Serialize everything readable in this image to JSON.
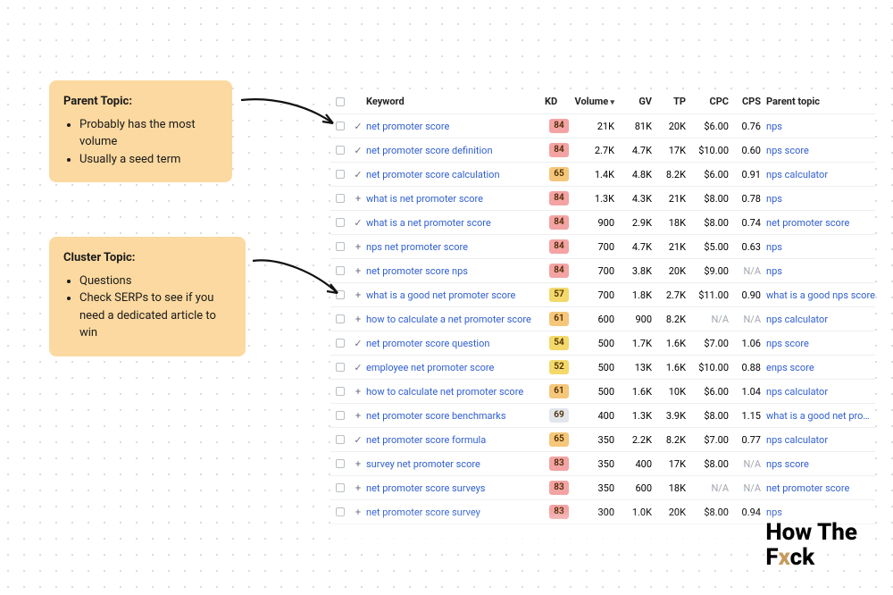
{
  "callouts": {
    "parent": {
      "title": "Parent Topic:",
      "bullets": [
        "Probably has the most volume",
        "Usually a seed term"
      ]
    },
    "cluster": {
      "title": "Cluster Topic:",
      "bullets": [
        "Questions",
        "Check SERPs to see if you need a dedicated article to win"
      ]
    }
  },
  "table": {
    "headers": {
      "keyword": "Keyword",
      "kd": "KD",
      "volume": "Volume",
      "gv": "GV",
      "tp": "TP",
      "cpc": "CPC",
      "cps": "CPS",
      "parent": "Parent topic"
    },
    "kd_colors": {
      "84": "#f3a3a3",
      "65": "#f5c77a",
      "57": "#f3d96a",
      "61": "#f5c77a",
      "54": "#f3d96a",
      "52": "#f3d96a",
      "69": "#e2e6ea",
      "83": "#f3a3a3"
    },
    "rows": [
      {
        "ico": "✓",
        "kw": "net promoter score",
        "kd": "84",
        "vol": "21K",
        "gv": "81K",
        "tp": "20K",
        "cpc": "$6.00",
        "cps": "0.76",
        "pt": "nps"
      },
      {
        "ico": "✓",
        "kw": "net promoter score definition",
        "kd": "84",
        "vol": "2.7K",
        "gv": "4.7K",
        "tp": "17K",
        "cpc": "$10.00",
        "cps": "0.60",
        "pt": "nps score"
      },
      {
        "ico": "✓",
        "kw": "net promoter score calculation",
        "kd": "65",
        "vol": "1.4K",
        "gv": "4.8K",
        "tp": "8.2K",
        "cpc": "$6.00",
        "cps": "0.91",
        "pt": "nps calculator"
      },
      {
        "ico": "+",
        "kw": "what is net promoter score",
        "kd": "84",
        "vol": "1.3K",
        "gv": "4.3K",
        "tp": "21K",
        "cpc": "$8.00",
        "cps": "0.78",
        "pt": "nps"
      },
      {
        "ico": "✓",
        "kw": "what is a net promoter score",
        "kd": "84",
        "vol": "900",
        "gv": "2.9K",
        "tp": "18K",
        "cpc": "$8.00",
        "cps": "0.74",
        "pt": "net promoter score"
      },
      {
        "ico": "+",
        "kw": "nps net promoter score",
        "kd": "84",
        "vol": "700",
        "gv": "4.7K",
        "tp": "21K",
        "cpc": "$5.00",
        "cps": "0.63",
        "pt": "nps"
      },
      {
        "ico": "+",
        "kw": "net promoter score nps",
        "kd": "84",
        "vol": "700",
        "gv": "3.8K",
        "tp": "20K",
        "cpc": "$9.00",
        "cps": "N/A",
        "pt": "nps"
      },
      {
        "ico": "+",
        "kw": "what is a good net promoter score",
        "kd": "57",
        "vol": "700",
        "gv": "1.8K",
        "tp": "2.7K",
        "cpc": "$11.00",
        "cps": "0.90",
        "pt": "what is a good nps score"
      },
      {
        "ico": "+",
        "kw": "how to calculate a net promoter score",
        "kd": "61",
        "vol": "600",
        "gv": "900",
        "tp": "8.2K",
        "cpc": "N/A",
        "cps": "N/A",
        "pt": "nps calculator"
      },
      {
        "ico": "✓",
        "kw": "net promoter score question",
        "kd": "54",
        "vol": "500",
        "gv": "1.7K",
        "tp": "1.6K",
        "cpc": "$7.00",
        "cps": "1.06",
        "pt": "nps score"
      },
      {
        "ico": "✓",
        "kw": "employee net promoter score",
        "kd": "52",
        "vol": "500",
        "gv": "13K",
        "tp": "1.6K",
        "cpc": "$10.00",
        "cps": "0.88",
        "pt": "enps score"
      },
      {
        "ico": "+",
        "kw": "how to calculate net promoter score",
        "kd": "61",
        "vol": "500",
        "gv": "1.6K",
        "tp": "10K",
        "cpc": "$6.00",
        "cps": "1.04",
        "pt": "nps calculator"
      },
      {
        "ico": "+",
        "kw": "net promoter score benchmarks",
        "kd": "69",
        "vol": "400",
        "gv": "1.3K",
        "tp": "3.9K",
        "cpc": "$8.00",
        "cps": "1.15",
        "pt": "what is a good net promoter score"
      },
      {
        "ico": "✓",
        "kw": "net promoter score formula",
        "kd": "65",
        "vol": "350",
        "gv": "2.2K",
        "tp": "8.2K",
        "cpc": "$7.00",
        "cps": "0.77",
        "pt": "nps calculator"
      },
      {
        "ico": "+",
        "kw": "survey net promoter score",
        "kd": "83",
        "vol": "350",
        "gv": "400",
        "tp": "17K",
        "cpc": "$8.00",
        "cps": "N/A",
        "pt": "nps score"
      },
      {
        "ico": "+",
        "kw": "net promoter score surveys",
        "kd": "83",
        "vol": "350",
        "gv": "600",
        "tp": "18K",
        "cpc": "N/A",
        "cps": "N/A",
        "pt": "net promoter score"
      },
      {
        "ico": "+",
        "kw": "net promoter score survey",
        "kd": "83",
        "vol": "300",
        "gv": "1.0K",
        "tp": "20K",
        "cpc": "$8.00",
        "cps": "0.94",
        "pt": "nps"
      }
    ]
  },
  "logo": {
    "l1": "How The",
    "l2a": "F",
    "l2x": "x",
    "l2b": "ck"
  }
}
